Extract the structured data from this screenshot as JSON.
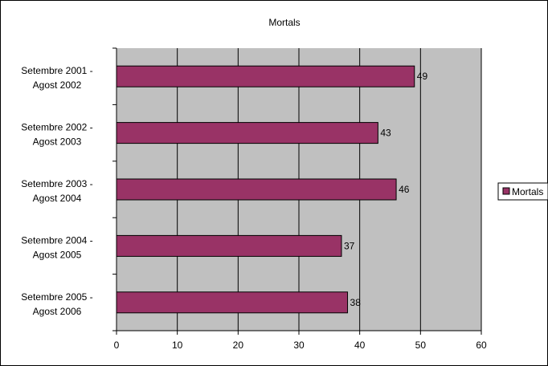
{
  "chart_data": {
    "type": "bar",
    "orientation": "horizontal",
    "title": "Mortals",
    "categories": [
      [
        "Setembre 2001 -",
        "Agost 2002"
      ],
      [
        "Setembre 2002 -",
        "Agost 2003"
      ],
      [
        "Setembre 2003 -",
        "Agost 2004"
      ],
      [
        "Setembre 2004 -",
        "Agost 2005"
      ],
      [
        "Setembre 2005 -",
        "Agost 2006"
      ]
    ],
    "series": [
      {
        "name": "Mortals",
        "values": [
          49,
          43,
          46,
          37,
          38
        ]
      }
    ],
    "data_labels": [
      "49",
      "43",
      "46",
      "37",
      "38"
    ],
    "xlim": [
      0,
      60
    ],
    "xticks": [
      "0",
      "10",
      "20",
      "30",
      "40",
      "50",
      "60"
    ],
    "grid": true,
    "legend_position": "right",
    "colors": {
      "bar": "#993366",
      "plot_background": "#c0c0c0",
      "frame": "#000000"
    }
  }
}
